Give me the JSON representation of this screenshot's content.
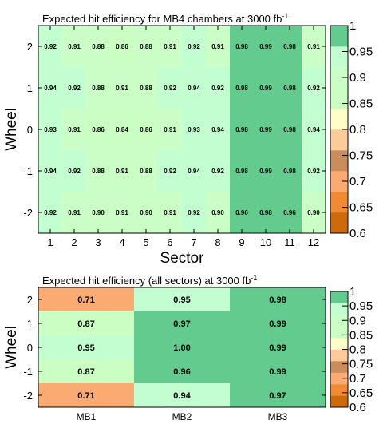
{
  "chart_data": [
    {
      "type": "heatmap",
      "title": "Expected hit efficiency for MB4 chambers at 3000 fb",
      "title_superscript": "-1",
      "xlabel": "Sector",
      "ylabel": "Wheel",
      "x_categories": [
        "1",
        "2",
        "3",
        "4",
        "5",
        "6",
        "7",
        "8",
        "9",
        "10",
        "11",
        "12"
      ],
      "y_categories": [
        "2",
        "1",
        "0",
        "-1",
        "-2"
      ],
      "values": [
        [
          0.92,
          0.91,
          0.88,
          0.86,
          0.88,
          0.91,
          0.92,
          0.91,
          0.98,
          0.99,
          0.98,
          0.91
        ],
        [
          0.94,
          0.92,
          0.88,
          0.91,
          0.88,
          0.92,
          0.94,
          0.92,
          0.98,
          0.99,
          0.98,
          0.92
        ],
        [
          0.93,
          0.91,
          0.86,
          0.84,
          0.86,
          0.91,
          0.93,
          0.94,
          0.98,
          0.99,
          0.98,
          0.94
        ],
        [
          0.94,
          0.92,
          0.88,
          0.91,
          0.88,
          0.92,
          0.94,
          0.92,
          0.98,
          0.99,
          0.98,
          0.92
        ],
        [
          0.92,
          0.91,
          0.9,
          0.91,
          0.9,
          0.91,
          0.92,
          0.9,
          0.96,
          0.98,
          0.96,
          0.9
        ]
      ],
      "zlim": [
        0.6,
        1.0
      ],
      "colorbar_ticks": [
        "1",
        "0.95",
        "0.9",
        "0.85",
        "0.8",
        "0.75",
        "0.7",
        "0.65",
        "0.6"
      ]
    },
    {
      "type": "heatmap",
      "title": "Expected hit efficiency (all sectors) at 3000 fb",
      "title_superscript": "-1",
      "xlabel": "",
      "ylabel": "Wheel",
      "x_categories": [
        "MB1",
        "MB2",
        "MB3"
      ],
      "y_categories": [
        "2",
        "1",
        "0",
        "-1",
        "-2"
      ],
      "values": [
        [
          0.71,
          0.95,
          0.98
        ],
        [
          0.87,
          0.97,
          0.99
        ],
        [
          0.95,
          1.0,
          0.99
        ],
        [
          0.87,
          0.96,
          0.99
        ],
        [
          0.71,
          0.94,
          0.97
        ]
      ],
      "zlim": [
        0.6,
        1.0
      ],
      "colorbar_ticks": [
        "1",
        "0.95",
        "0.9",
        "0.85",
        "0.8",
        "0.75",
        "0.7",
        "0.65",
        "0.6"
      ]
    }
  ],
  "palette": [
    "#cc6a0c",
    "#f18a33",
    "#fbab71",
    "#c98d5d",
    "#fdcb9a",
    "#fefec9",
    "#cbfec3",
    "#cafec6",
    "#c2fed0",
    "#63cb8e"
  ]
}
